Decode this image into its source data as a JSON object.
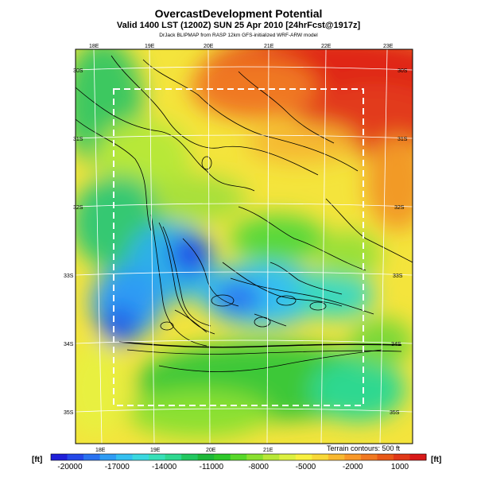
{
  "title": "OvercastDevelopment Potential",
  "subtitle": "Valid 1400 LST (1200Z) SUN 25 Apr 2010 [24hrFcst@1917z]",
  "credit": "DrJack BLIPMAP from RASP 12km GFS-initialized WRF-ARW model",
  "contour_note": "Terrain contours: 500 ft",
  "units": "[ft]",
  "lon_labels": [
    "18E",
    "19E",
    "20E",
    "21E",
    "22E",
    "23E"
  ],
  "lat_labels": [
    "30S",
    "31S",
    "32S",
    "33S",
    "34S",
    "35S"
  ],
  "colorbar": {
    "ticks": [
      "-20000",
      "-17000",
      "-14000",
      "-11000",
      "-8000",
      "-5000",
      "-2000",
      "1000"
    ],
    "colors": [
      "#1f1fd8",
      "#2448e8",
      "#2a72f0",
      "#2f9cf4",
      "#35c0f0",
      "#3bd8e0",
      "#38e0b8",
      "#2fd890",
      "#22c860",
      "#1eb83a",
      "#2ec82a",
      "#58d82a",
      "#8ae030",
      "#b8e838",
      "#dcf040",
      "#f8f040",
      "#f8d838",
      "#f8b830",
      "#f89828",
      "#f07820",
      "#e85818",
      "#e03818",
      "#d81818"
    ]
  }
}
